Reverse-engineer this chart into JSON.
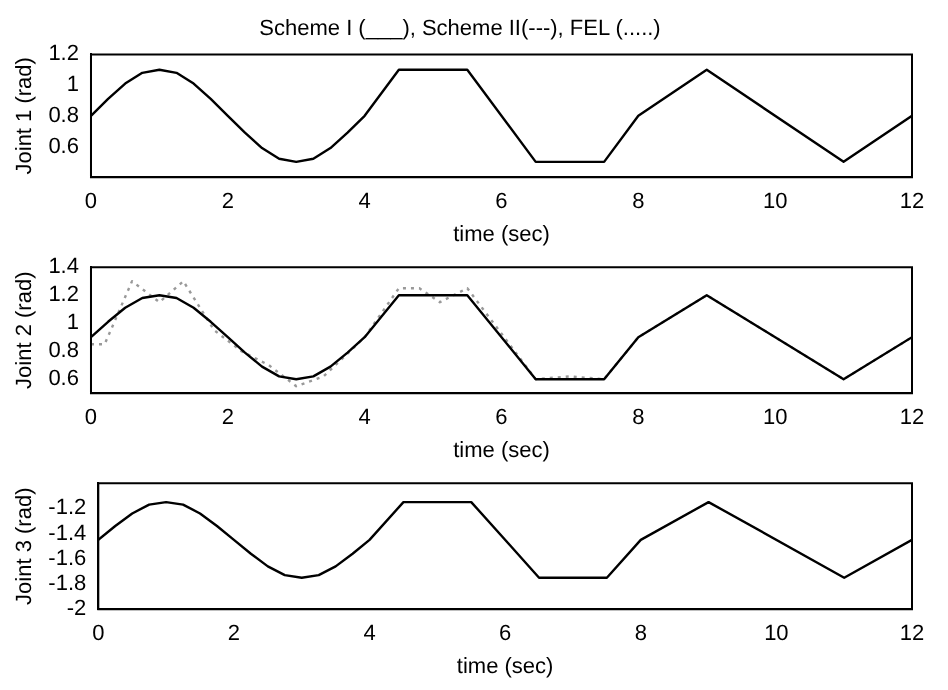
{
  "chart_data": [
    {
      "type": "line",
      "title": "Scheme I (___), Scheme II(---), FEL (.....)",
      "xlabel": "time (sec)",
      "ylabel": "Joint 1 (rad)",
      "xlim": [
        0,
        12
      ],
      "xticks": [
        0,
        2,
        4,
        6,
        8,
        10,
        12
      ],
      "ylim": [
        0.4,
        1.2
      ],
      "yticks": [
        0.6,
        0.8,
        1,
        1.2
      ],
      "grid": false,
      "legend": false,
      "marker": "none",
      "series": [
        {
          "color": "#000000",
          "line_style": "solid",
          "x": [
            0,
            0.25,
            0.5,
            0.75,
            1,
            1.25,
            1.5,
            1.75,
            2,
            2.25,
            2.5,
            2.75,
            3,
            3.25,
            3.5,
            3.75,
            4,
            4.5,
            5.5,
            6.5,
            7.5,
            8,
            9,
            11,
            12
          ],
          "values": [
            0.8,
            0.91,
            1.01,
            1.08,
            1.1,
            1.08,
            1.01,
            0.91,
            0.8,
            0.69,
            0.59,
            0.52,
            0.5,
            0.52,
            0.59,
            0.69,
            0.8,
            1.1,
            1.1,
            0.5,
            0.5,
            0.8,
            1.1,
            0.5,
            0.8
          ]
        }
      ]
    },
    {
      "type": "line",
      "xlabel": "time (sec)",
      "ylabel": "Joint 2 (rad)",
      "xlim": [
        0,
        12
      ],
      "xticks": [
        0,
        2,
        4,
        6,
        8,
        10,
        12
      ],
      "ylim": [
        0.5,
        1.4
      ],
      "yticks": [
        0.6,
        0.8,
        1,
        1.2,
        1.4
      ],
      "grid": false,
      "legend": false,
      "marker": "none",
      "series": [
        {
          "color": "#000000",
          "line_style": "solid",
          "x": [
            0,
            0.25,
            0.5,
            0.75,
            1,
            1.25,
            1.5,
            1.75,
            2,
            2.25,
            2.5,
            2.75,
            3,
            3.25,
            3.5,
            3.75,
            4,
            4.5,
            5.5,
            6.5,
            7.5,
            8,
            9,
            11,
            12
          ],
          "values": [
            0.9,
            1.01,
            1.11,
            1.18,
            1.2,
            1.18,
            1.11,
            1.01,
            0.9,
            0.79,
            0.69,
            0.62,
            0.6,
            0.62,
            0.69,
            0.79,
            0.9,
            1.2,
            1.2,
            0.6,
            0.6,
            0.9,
            1.2,
            0.6,
            0.9
          ]
        },
        {
          "color": "#999999",
          "line_style": "dotted",
          "x": [
            0,
            0.2,
            0.6,
            1,
            1.35,
            1.8,
            2.2,
            2.6,
            3,
            3.4,
            4,
            4.5,
            4.8,
            5.1,
            5.5,
            6.5,
            7,
            7.5,
            8,
            9,
            11,
            12
          ],
          "values": [
            0.85,
            0.85,
            1.3,
            1.15,
            1.3,
            0.95,
            0.8,
            0.7,
            0.55,
            0.62,
            0.9,
            1.25,
            1.25,
            1.15,
            1.25,
            0.6,
            0.62,
            0.6,
            0.9,
            1.2,
            0.6,
            0.9
          ]
        }
      ]
    },
    {
      "type": "line",
      "xlabel": "time (sec)",
      "ylabel": "Joint 3 (rad)",
      "xlim": [
        0,
        12
      ],
      "xticks": [
        0,
        2,
        4,
        6,
        8,
        10,
        12
      ],
      "ylim": [
        -2,
        -1
      ],
      "yticks": [
        -2,
        -1.8,
        -1.6,
        -1.4,
        -1.2
      ],
      "grid": false,
      "legend": false,
      "marker": "none",
      "series": [
        {
          "color": "#000000",
          "line_style": "solid",
          "x": [
            0,
            0.25,
            0.5,
            0.75,
            1,
            1.25,
            1.5,
            1.75,
            2,
            2.25,
            2.5,
            2.75,
            3,
            3.25,
            3.5,
            3.75,
            4,
            4.5,
            5.5,
            6.5,
            7.5,
            8,
            9,
            11,
            12
          ],
          "values": [
            -1.45,
            -1.34,
            -1.24,
            -1.17,
            -1.15,
            -1.17,
            -1.24,
            -1.34,
            -1.45,
            -1.56,
            -1.66,
            -1.73,
            -1.75,
            -1.73,
            -1.66,
            -1.56,
            -1.45,
            -1.15,
            -1.15,
            -1.75,
            -1.75,
            -1.45,
            -1.15,
            -1.75,
            -1.45
          ]
        }
      ]
    }
  ]
}
